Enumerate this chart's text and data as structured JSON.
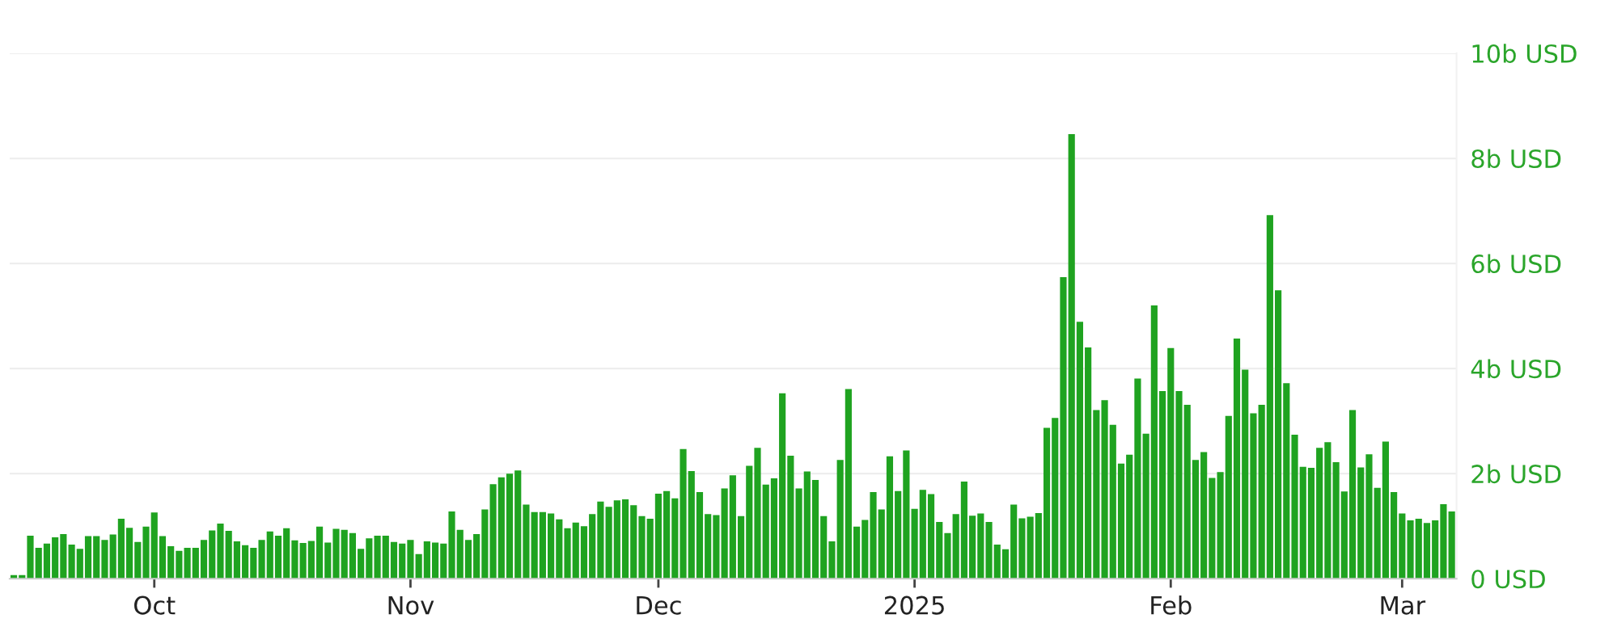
{
  "chart_data": {
    "type": "bar",
    "color": "#1fa320",
    "x": [
      "2024-09-14",
      "2024-09-15",
      "2024-09-16",
      "2024-09-17",
      "2024-09-18",
      "2024-09-19",
      "2024-09-20",
      "2024-09-21",
      "2024-09-22",
      "2024-09-23",
      "2024-09-24",
      "2024-09-25",
      "2024-09-26",
      "2024-09-27",
      "2024-09-28",
      "2024-09-29",
      "2024-09-30",
      "2024-10-01",
      "2024-10-02",
      "2024-10-03",
      "2024-10-04",
      "2024-10-05",
      "2024-10-06",
      "2024-10-07",
      "2024-10-08",
      "2024-10-09",
      "2024-10-10",
      "2024-10-11",
      "2024-10-12",
      "2024-10-13",
      "2024-10-14",
      "2024-10-15",
      "2024-10-16",
      "2024-10-17",
      "2024-10-18",
      "2024-10-19",
      "2024-10-20",
      "2024-10-21",
      "2024-10-22",
      "2024-10-23",
      "2024-10-24",
      "2024-10-25",
      "2024-10-26",
      "2024-10-27",
      "2024-10-28",
      "2024-10-29",
      "2024-10-30",
      "2024-10-31",
      "2024-11-01",
      "2024-11-02",
      "2024-11-03",
      "2024-11-04",
      "2024-11-05",
      "2024-11-06",
      "2024-11-07",
      "2024-11-08",
      "2024-11-09",
      "2024-11-10",
      "2024-11-11",
      "2024-11-12",
      "2024-11-13",
      "2024-11-14",
      "2024-11-15",
      "2024-11-16",
      "2024-11-17",
      "2024-11-18",
      "2024-11-19",
      "2024-11-20",
      "2024-11-21",
      "2024-11-22",
      "2024-11-23",
      "2024-11-24",
      "2024-11-25",
      "2024-11-26",
      "2024-11-27",
      "2024-11-28",
      "2024-11-29",
      "2024-11-30",
      "2024-12-01",
      "2024-12-02",
      "2024-12-03",
      "2024-12-04",
      "2024-12-05",
      "2024-12-06",
      "2024-12-07",
      "2024-12-08",
      "2024-12-09",
      "2024-12-10",
      "2024-12-11",
      "2024-12-12",
      "2024-12-13",
      "2024-12-14",
      "2024-12-15",
      "2024-12-16",
      "2024-12-17",
      "2024-12-18",
      "2024-12-19",
      "2024-12-20",
      "2024-12-21",
      "2024-12-22",
      "2024-12-23",
      "2024-12-24",
      "2024-12-25",
      "2024-12-26",
      "2024-12-27",
      "2024-12-28",
      "2024-12-29",
      "2024-12-30",
      "2024-12-31",
      "2025-01-01",
      "2025-01-02",
      "2025-01-03",
      "2025-01-04",
      "2025-01-05",
      "2025-01-06",
      "2025-01-07",
      "2025-01-08",
      "2025-01-09",
      "2025-01-10",
      "2025-01-11",
      "2025-01-12",
      "2025-01-13",
      "2025-01-14",
      "2025-01-15",
      "2025-01-16",
      "2025-01-17",
      "2025-01-18",
      "2025-01-19",
      "2025-01-20",
      "2025-01-21",
      "2025-01-22",
      "2025-01-23",
      "2025-01-24",
      "2025-01-25",
      "2025-01-26",
      "2025-01-27",
      "2025-01-28",
      "2025-01-29",
      "2025-01-30",
      "2025-01-31",
      "2025-02-01",
      "2025-02-02",
      "2025-02-03",
      "2025-02-04",
      "2025-02-05",
      "2025-02-06",
      "2025-02-07",
      "2025-02-08",
      "2025-02-09",
      "2025-02-10",
      "2025-02-11",
      "2025-02-12",
      "2025-02-13",
      "2025-02-14",
      "2025-02-15",
      "2025-02-16",
      "2025-02-17",
      "2025-02-18",
      "2025-02-19",
      "2025-02-20",
      "2025-02-21",
      "2025-02-22",
      "2025-02-23",
      "2025-02-24",
      "2025-02-25",
      "2025-02-26",
      "2025-02-27",
      "2025-02-28",
      "2025-03-01",
      "2025-03-02",
      "2025-03-03",
      "2025-03-04",
      "2025-03-05",
      "2025-03-06",
      "2025-03-07"
    ],
    "values": [
      0.07,
      0.07,
      0.82,
      0.59,
      0.67,
      0.79,
      0.85,
      0.65,
      0.57,
      0.81,
      0.81,
      0.74,
      0.84,
      1.14,
      0.97,
      0.7,
      0.99,
      1.26,
      0.81,
      0.62,
      0.53,
      0.59,
      0.59,
      0.74,
      0.92,
      1.05,
      0.91,
      0.71,
      0.64,
      0.59,
      0.74,
      0.9,
      0.82,
      0.96,
      0.73,
      0.68,
      0.72,
      0.99,
      0.69,
      0.95,
      0.93,
      0.87,
      0.57,
      0.77,
      0.82,
      0.82,
      0.7,
      0.67,
      0.74,
      0.47,
      0.71,
      0.69,
      0.67,
      1.28,
      0.93,
      0.74,
      0.85,
      1.32,
      1.8,
      1.93,
      2.0,
      2.06,
      1.41,
      1.27,
      1.27,
      1.24,
      1.13,
      0.96,
      1.07,
      1.0,
      1.23,
      1.47,
      1.37,
      1.49,
      1.51,
      1.4,
      1.19,
      1.14,
      1.62,
      1.67,
      1.53,
      2.47,
      2.05,
      1.65,
      1.23,
      1.21,
      1.72,
      1.97,
      1.19,
      2.15,
      2.49,
      1.79,
      1.91,
      3.53,
      2.34,
      1.72,
      2.04,
      1.88,
      1.19,
      0.71,
      2.26,
      3.61,
      0.99,
      1.12,
      1.65,
      1.32,
      2.33,
      1.67,
      2.44,
      1.33,
      1.69,
      1.61,
      1.08,
      0.87,
      1.23,
      1.85,
      1.2,
      1.24,
      1.08,
      0.65,
      0.56,
      1.41,
      1.15,
      1.18,
      1.25,
      2.87,
      3.06,
      5.74,
      8.46,
      4.89,
      4.4,
      3.21,
      3.4,
      2.93,
      2.19,
      2.36,
      3.81,
      2.76,
      5.2,
      3.57,
      4.39,
      3.57,
      3.31,
      2.26,
      2.41,
      1.92,
      2.03,
      3.1,
      4.57,
      3.98,
      3.15,
      3.31,
      6.92,
      5.49,
      3.72,
      2.74,
      2.13,
      2.11,
      2.49,
      2.6,
      2.22,
      1.66,
      3.21,
      2.12,
      2.37,
      1.73,
      2.61,
      1.65,
      1.24,
      1.11,
      1.14,
      1.06,
      1.11,
      1.42,
      1.28
    ],
    "xlim": [
      "2024-09-13T12:00",
      "2025-03-07T14:00"
    ],
    "xticks": [
      {
        "value": "2024-10-01",
        "label": "Oct"
      },
      {
        "value": "2024-11-01",
        "label": "Nov"
      },
      {
        "value": "2024-12-01",
        "label": "Dec"
      },
      {
        "value": "2025-01-01",
        "label": "2025"
      },
      {
        "value": "2025-02-01",
        "label": "Feb"
      },
      {
        "value": "2025-03-01",
        "label": "Mar"
      }
    ],
    "ylim": [
      0,
      10
    ],
    "yticks": [
      {
        "value": 0,
        "label": "0 USD"
      },
      {
        "value": 2,
        "label": "2b USD"
      },
      {
        "value": 4,
        "label": "4b USD"
      },
      {
        "value": 6,
        "label": "6b USD"
      },
      {
        "value": 8,
        "label": "8b USD"
      },
      {
        "value": 10,
        "label": "10b USD"
      }
    ],
    "grid": "y",
    "legend": false
  }
}
